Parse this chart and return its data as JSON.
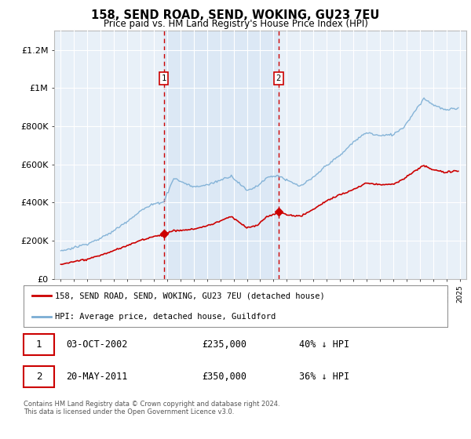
{
  "title": "158, SEND ROAD, SEND, WOKING, GU23 7EU",
  "subtitle": "Price paid vs. HM Land Registry's House Price Index (HPI)",
  "background_color": "#ffffff",
  "plot_bg_color": "#e8f0f8",
  "grid_color": "#ffffff",
  "hpi_color": "#7aadd4",
  "price_color": "#cc0000",
  "span_color": "#dce8f5",
  "ylim": [
    0,
    1300000
  ],
  "yticks": [
    0,
    200000,
    400000,
    600000,
    800000,
    1000000,
    1200000
  ],
  "ytick_labels": [
    "£0",
    "£200K",
    "£400K",
    "£600K",
    "£800K",
    "£1M",
    "£1.2M"
  ],
  "sale1_year": 2002.75,
  "sale1_price": 235000,
  "sale1_label": "1",
  "sale1_date": "03-OCT-2002",
  "sale1_pct": "40% ↓ HPI",
  "sale2_year": 2011.38,
  "sale2_price": 350000,
  "sale2_label": "2",
  "sale2_date": "20-MAY-2011",
  "sale2_pct": "36% ↓ HPI",
  "legend_line1": "158, SEND ROAD, SEND, WOKING, GU23 7EU (detached house)",
  "legend_line2": "HPI: Average price, detached house, Guildford",
  "footnote": "Contains HM Land Registry data © Crown copyright and database right 2024.\nThis data is licensed under the Open Government Licence v3.0."
}
